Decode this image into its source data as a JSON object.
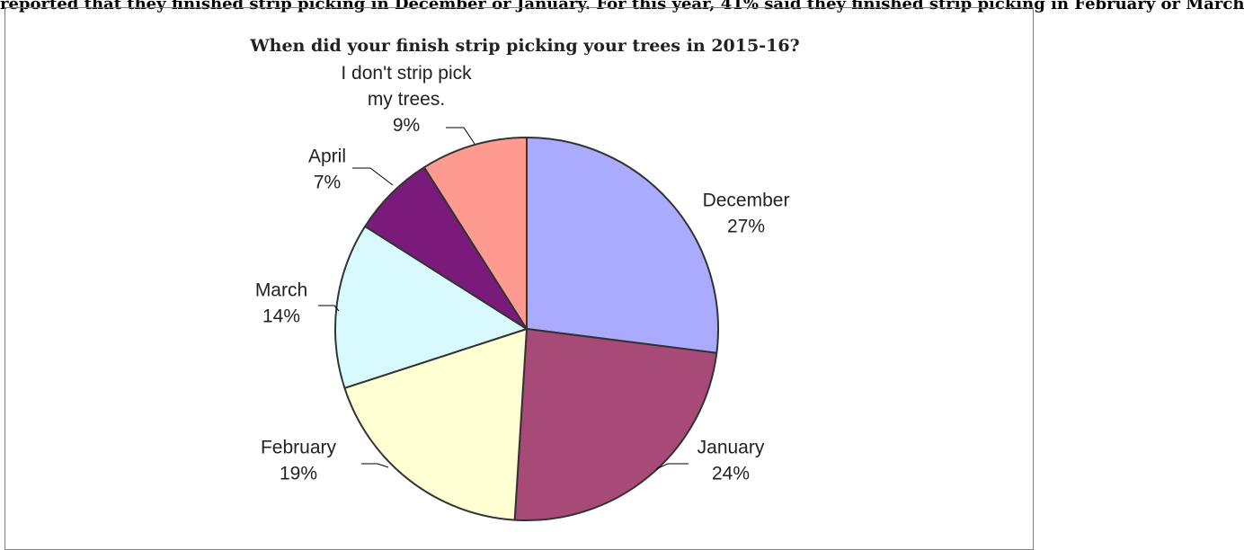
{
  "page": {
    "top_text": "reported that they finished strip picking in December or January. For this year, 41% said they finished strip picking in February or March"
  },
  "chart_data": {
    "type": "pie",
    "title": "When did your finish strip picking your trees in 2015-16?",
    "slices": [
      {
        "label": "December",
        "value": 27,
        "value_label": "27%",
        "color": "#aaaaff"
      },
      {
        "label": "January",
        "value": 24,
        "value_label": "24%",
        "color": "#a84a78"
      },
      {
        "label": "February",
        "value": 19,
        "value_label": "19%",
        "color": "#ffffd4"
      },
      {
        "label": "March",
        "value": 14,
        "value_label": "14%",
        "color": "#d8faff"
      },
      {
        "label": "April",
        "value": 7,
        "value_label": "7%",
        "color": "#7a1a7a"
      },
      {
        "label": "I don't strip pick my trees.",
        "value": 9,
        "value_label": "9%",
        "color": "#ff9a90"
      }
    ],
    "start_angle": "12 o'clock",
    "direction": "clockwise",
    "legend": "none",
    "data_labels": "outside with leader lines"
  }
}
